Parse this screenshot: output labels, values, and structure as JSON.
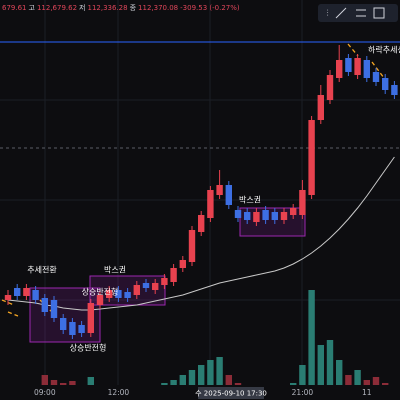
{
  "chart_data": {
    "type": "candlestick",
    "header": [
      "679.61",
      "고",
      "112,679.62",
      "저",
      "112,336.28",
      "종",
      "112,370.08",
      "-309.53 (-0.27%)"
    ],
    "categories": [
      null,
      null,
      null,
      null,
      "09:00",
      null,
      null,
      null,
      null,
      null,
      null,
      null,
      "12:00",
      null,
      null,
      null,
      null,
      null,
      null,
      null,
      null,
      null,
      null,
      null,
      null,
      null,
      null,
      null,
      null,
      null,
      null,
      null,
      "21:00",
      null,
      null,
      null,
      null,
      null,
      null,
      "11",
      null,
      null,
      null
    ],
    "crosshair_label": "수 2025-09-10  17:30",
    "open": [
      106500,
      106800,
      106600,
      106750,
      106550,
      106500,
      106050,
      105950,
      105875,
      105675,
      106375,
      106550,
      106750,
      106700,
      106625,
      106925,
      106750,
      106875,
      106950,
      107300,
      107450,
      108200,
      108550,
      109125,
      109375,
      108750,
      108700,
      108450,
      108750,
      108700,
      108500,
      108625,
      108625,
      109125,
      111000,
      111500,
      112050,
      112550,
      112125,
      112500,
      112200,
      112050,
      111875
    ],
    "high": [
      106750,
      106900,
      106900,
      106850,
      106650,
      106600,
      106150,
      106050,
      105975,
      106525,
      106725,
      106850,
      106850,
      106800,
      106975,
      107025,
      107025,
      107150,
      107400,
      107600,
      108350,
      108725,
      109350,
      109750,
      109475,
      108850,
      108800,
      108800,
      108850,
      108800,
      108800,
      108900,
      109500,
      111100,
      111875,
      112250,
      112875,
      112650,
      112650,
      112600,
      112300,
      112150,
      111975
    ],
    "low": [
      106375,
      106500,
      106500,
      106400,
      106100,
      105950,
      105650,
      105525,
      105575,
      105575,
      106275,
      106450,
      106450,
      106450,
      106525,
      106700,
      106650,
      106775,
      106850,
      107200,
      107350,
      108100,
      108450,
      109025,
      108775,
      108450,
      108400,
      108350,
      108400,
      108400,
      108400,
      108525,
      108525,
      109025,
      110900,
      111400,
      111950,
      112100,
      112025,
      111950,
      111850,
      111650,
      111525
    ],
    "close": [
      106625,
      106600,
      106800,
      106500,
      106200,
      106050,
      105750,
      105625,
      105675,
      106425,
      106625,
      106750,
      106550,
      106550,
      106875,
      106800,
      106925,
      107050,
      107300,
      107500,
      108250,
      108625,
      109250,
      109375,
      108875,
      108550,
      108500,
      108700,
      108500,
      108500,
      108700,
      108800,
      109250,
      111000,
      111625,
      112125,
      112500,
      112200,
      112550,
      112050,
      111950,
      111750,
      111625
    ],
    "volume": [
      5,
      8,
      6,
      10,
      20,
      15,
      12,
      14,
      10,
      18,
      10,
      8,
      9,
      6,
      7,
      8,
      9,
      12,
      15,
      20,
      25,
      30,
      35,
      38,
      20,
      12,
      10,
      9,
      8,
      10,
      8,
      12,
      30,
      105,
      50,
      55,
      35,
      20,
      25,
      15,
      18,
      12,
      10
    ],
    "moving_average": [
      106500,
      106475,
      106450,
      106425,
      106375,
      106350,
      106300,
      106275,
      106250,
      106250,
      106275,
      106300,
      106325,
      106350,
      106375,
      106425,
      106475,
      106525,
      106575,
      106625,
      106700,
      106775,
      106850,
      106925,
      106975,
      107025,
      107075,
      107125,
      107175,
      107225,
      107300,
      107400,
      107525,
      107675,
      107850,
      108050,
      108275,
      108525,
      108800,
      109100,
      109425,
      109750,
      110075
    ],
    "price_line": 112950,
    "ylim": [
      104000,
      114000
    ],
    "volume_ylim": [
      0,
      120
    ],
    "up_color": "#e8424f",
    "down_color": "#3d6fe3",
    "volume_up_color": "#2a7d73",
    "volume_down_color": "#8c2c38",
    "ma_color": "#c9c9c9",
    "price_line_color": "#2962ff",
    "annotations": [
      "추세전환",
      "박스권",
      "상승반전형",
      "상승반전형",
      "박스권",
      "하락추세선"
    ]
  }
}
